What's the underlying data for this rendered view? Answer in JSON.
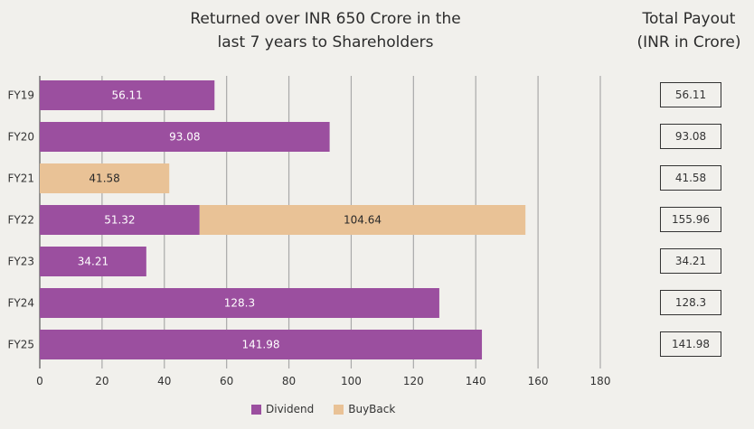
{
  "chart_data": {
    "type": "bar",
    "orientation": "horizontal",
    "stacked": true,
    "title": "Returned over INR 650 Crore in the last 7 years to Shareholders",
    "title_lines": [
      "Returned over INR 650 Crore in the",
      "last 7 years to Shareholders"
    ],
    "categories": [
      "FY19",
      "FY20",
      "FY21",
      "FY22",
      "FY23",
      "FY24",
      "FY25"
    ],
    "series": [
      {
        "name": "Dividend",
        "color": "#9b4f9f",
        "label_color": "#ffffff",
        "values": [
          56.11,
          93.08,
          0,
          51.32,
          34.21,
          128.3,
          141.98
        ],
        "labels": [
          "56.11",
          "93.08",
          "",
          "51.32",
          "34.21",
          "128.3",
          "141.98"
        ]
      },
      {
        "name": "BuyBack",
        "color": "#e9c296",
        "label_color": "#2a2a2a",
        "values": [
          0,
          0,
          41.58,
          104.64,
          0,
          0,
          0
        ],
        "labels": [
          "",
          "",
          "41.58",
          "104.64",
          "",
          "",
          ""
        ]
      }
    ],
    "xlim": [
      0,
      180
    ],
    "xticks": [
      0,
      20,
      40,
      60,
      80,
      100,
      120,
      140,
      160,
      180
    ],
    "xlabel": "",
    "ylabel": "",
    "grid": true,
    "legend_position": "bottom-center",
    "totals_title_lines": [
      "Total Payout",
      "(INR in Crore)"
    ],
    "totals": [
      "56.11",
      "93.08",
      "41.58",
      "155.96",
      "34.21",
      "128.3",
      "141.98"
    ]
  }
}
